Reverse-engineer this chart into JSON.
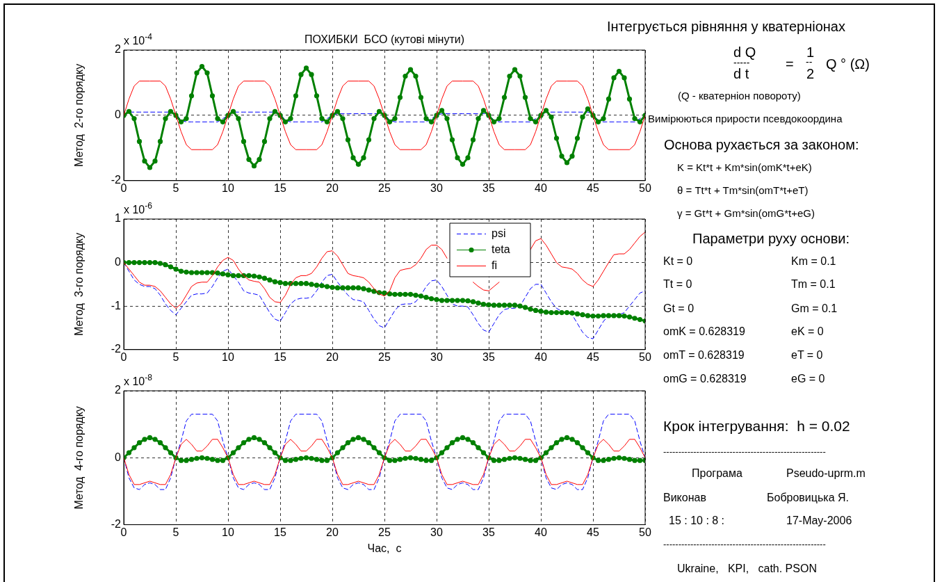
{
  "chart_data": [
    {
      "type": "line",
      "title": "ПОХИБКИ  БСО (кутові мінути)",
      "ylabel": "Метод  2-го порядку",
      "annotations": [
        "x 10$^{-4}$"
      ],
      "xlim": [
        0,
        50
      ],
      "xticks": [
        0,
        5,
        10,
        15,
        20,
        25,
        30,
        35,
        40,
        45,
        50
      ],
      "ylim": [
        -2,
        2
      ],
      "yticks": [
        -2,
        0,
        2
      ],
      "grid": true,
      "x": [
        0,
        0.5,
        1,
        1.5,
        2,
        2.5,
        3,
        3.5,
        4,
        4.5,
        5,
        5.5,
        6,
        6.5,
        7,
        7.5,
        8,
        8.5,
        9,
        9.5,
        10,
        10.5,
        11,
        11.5,
        12,
        12.5,
        13,
        13.5,
        14,
        14.5,
        15,
        15.5,
        16,
        16.5,
        17,
        17.5,
        18,
        18.5,
        19,
        19.5,
        20,
        20.5,
        21,
        21.5,
        22,
        22.5,
        23,
        23.5,
        24,
        24.5,
        25,
        25.5,
        26,
        26.5,
        27,
        27.5,
        28,
        28.5,
        29,
        29.5,
        30,
        30.5,
        31,
        31.5,
        32,
        32.5,
        33,
        33.5,
        34,
        34.5,
        35,
        35.5,
        36,
        36.5,
        37,
        37.5,
        38,
        38.5,
        39,
        39.5,
        40,
        40.5,
        41,
        41.5,
        42,
        42.5,
        43,
        43.5,
        44,
        44.5,
        45,
        45.5,
        46,
        46.5,
        47,
        47.5,
        48,
        48.5,
        49,
        49.5,
        50
      ],
      "series": [
        {
          "color": "#0000ff",
          "line_style": "dashed",
          "values": [
            0,
            0.1,
            0.1,
            0.1,
            0.1,
            0.1,
            0.1,
            0.1,
            0.1,
            0.1,
            0.05,
            -0.15,
            -0.2,
            -0.2,
            -0.2,
            -0.2,
            -0.2,
            -0.2,
            -0.2,
            -0.1,
            0,
            0.1,
            0.1,
            0.1,
            0.1,
            0.1,
            0.1,
            0.1,
            0.1,
            0.1,
            0.05,
            -0.15,
            -0.2,
            -0.2,
            -0.2,
            -0.2,
            -0.2,
            -0.2,
            -0.2,
            -0.1,
            0,
            0.05,
            0.05,
            0.05,
            0.05,
            0.05,
            0.05,
            0.05,
            0.05,
            0.05,
            0.05,
            -0.15,
            -0.2,
            -0.2,
            -0.2,
            -0.2,
            -0.2,
            -0.2,
            -0.2,
            -0.1,
            0,
            0.05,
            0.05,
            0.05,
            0.05,
            0.05,
            0.05,
            0.05,
            0.05,
            0.05,
            0.05,
            -0.15,
            -0.2,
            -0.2,
            -0.2,
            -0.2,
            -0.2,
            -0.2,
            -0.2,
            -0.1,
            0,
            0.1,
            0.1,
            0.1,
            0.1,
            0.1,
            0.1,
            0.1,
            0.1,
            0.1,
            0.05,
            -0.15,
            -0.2,
            -0.2,
            -0.2,
            -0.2,
            -0.2,
            -0.2,
            -0.2,
            -0.1,
            0
          ]
        },
        {
          "type": "line",
          "line_style": "solid",
          "color": "#008000",
          "marker": "circle",
          "values": [
            0,
            0.12,
            -0.1,
            -0.8,
            -1.4,
            -1.6,
            -1.4,
            -0.8,
            -0.1,
            0.12,
            0,
            -0.2,
            -0.1,
            0.6,
            1.3,
            1.5,
            1.3,
            0.6,
            -0.1,
            -0.2,
            0,
            0.12,
            -0.1,
            -0.8,
            -1.35,
            -1.55,
            -1.35,
            -0.8,
            -0.1,
            0.12,
            0,
            -0.2,
            -0.1,
            0.6,
            1.25,
            1.45,
            1.25,
            0.6,
            -0.1,
            -0.2,
            0,
            0.12,
            -0.1,
            -0.75,
            -1.3,
            -1.5,
            -1.3,
            -0.75,
            -0.1,
            0.12,
            0,
            -0.2,
            -0.1,
            0.55,
            1.2,
            1.4,
            1.2,
            0.55,
            -0.1,
            -0.2,
            0,
            0.15,
            -0.1,
            -0.75,
            -1.3,
            -1.5,
            -1.3,
            -0.75,
            -0.1,
            0.15,
            0,
            -0.2,
            -0.1,
            0.55,
            1.2,
            1.4,
            1.2,
            0.55,
            -0.1,
            -0.2,
            0,
            0.15,
            -0.05,
            -0.7,
            -1.25,
            -1.45,
            -1.25,
            -0.7,
            -0.05,
            0.2,
            0,
            -0.2,
            -0.1,
            0.5,
            1.15,
            1.35,
            1.15,
            0.5,
            -0.1,
            -0.2,
            0
          ]
        },
        {
          "color": "#ff0000",
          "line_style": "solid",
          "values": [
            0,
            0.5,
            0.9,
            1.05,
            1.05,
            1.05,
            1.05,
            1.05,
            0.9,
            0.5,
            0,
            -0.5,
            -0.9,
            -1.05,
            -1.05,
            -1.05,
            -1.05,
            -1.05,
            -0.9,
            -0.5,
            0,
            0.5,
            0.9,
            1.05,
            1.05,
            1.05,
            1.05,
            1.05,
            0.9,
            0.5,
            0,
            -0.5,
            -0.9,
            -1.05,
            -1.05,
            -1.05,
            -1.05,
            -1.05,
            -0.9,
            -0.5,
            0,
            0.5,
            0.9,
            1.05,
            1.05,
            1.05,
            1.05,
            1.05,
            0.9,
            0.5,
            0,
            -0.5,
            -0.9,
            -1.05,
            -1.05,
            -1.05,
            -1.05,
            -1.05,
            -0.9,
            -0.5,
            0,
            0.5,
            0.9,
            1.05,
            1.05,
            1.05,
            1.05,
            1.05,
            0.9,
            0.5,
            0,
            -0.5,
            -0.9,
            -1.05,
            -1.05,
            -1.05,
            -1.05,
            -1.05,
            -0.9,
            -0.5,
            0,
            0.5,
            0.9,
            1.05,
            1.05,
            1.05,
            1.05,
            1.05,
            0.9,
            0.5,
            0,
            -0.5,
            -0.9,
            -1.05,
            -1.05,
            -1.05,
            -1.05,
            -1.05,
            -0.9,
            -0.5,
            0
          ]
        }
      ]
    },
    {
      "type": "line",
      "ylabel": "Метод  3-го порядку",
      "annotations": [
        "x 10$^{-6}$"
      ],
      "xlim": [
        0,
        50
      ],
      "xticks": [
        0,
        5,
        10,
        15,
        20,
        25,
        30,
        35,
        40,
        45,
        50
      ],
      "ylim": [
        -2,
        1
      ],
      "yticks": [
        -2,
        -1,
        0,
        1
      ],
      "grid": true,
      "legend": "top right",
      "x": [
        0,
        0.5,
        1,
        1.5,
        2,
        2.5,
        3,
        3.5,
        4,
        4.5,
        5,
        5.5,
        6,
        6.5,
        7,
        7.5,
        8,
        8.5,
        9,
        9.5,
        10,
        10.5,
        11,
        11.5,
        12,
        12.5,
        13,
        13.5,
        14,
        14.5,
        15,
        15.5,
        16,
        16.5,
        17,
        17.5,
        18,
        18.5,
        19,
        19.5,
        20,
        20.5,
        21,
        21.5,
        22,
        22.5,
        23,
        23.5,
        24,
        24.5,
        25,
        25.5,
        26,
        26.5,
        27,
        27.5,
        28,
        28.5,
        29,
        29.5,
        30,
        30.5,
        31,
        31.5,
        32,
        32.5,
        33,
        33.5,
        34,
        34.5,
        35,
        35.5,
        36,
        36.5,
        37,
        37.5,
        38,
        38.5,
        39,
        39.5,
        40,
        40.5,
        41,
        41.5,
        42,
        42.5,
        43,
        43.5,
        44,
        44.5,
        45,
        45.5,
        46,
        46.5,
        47,
        47.5,
        48,
        48.5,
        49,
        49.5,
        50
      ],
      "series": [
        {
          "name": "psi",
          "color": "#0000ff",
          "line_style": "dashed",
          "values": [
            0,
            -0.2,
            -0.4,
            -0.5,
            -0.55,
            -0.55,
            -0.6,
            -0.75,
            -0.95,
            -1.1,
            -1.2,
            -1.05,
            -0.9,
            -0.75,
            -0.72,
            -0.72,
            -0.7,
            -0.55,
            -0.35,
            -0.2,
            -0.15,
            -0.3,
            -0.45,
            -0.65,
            -0.7,
            -0.72,
            -0.75,
            -0.95,
            -1.15,
            -1.3,
            -1.35,
            -1.15,
            -0.95,
            -0.85,
            -0.82,
            -0.82,
            -0.8,
            -0.65,
            -0.45,
            -0.3,
            -0.27,
            -0.45,
            -0.6,
            -0.75,
            -0.85,
            -0.87,
            -0.9,
            -1.1,
            -1.3,
            -1.45,
            -1.5,
            -1.3,
            -1.1,
            -0.97,
            -0.95,
            -0.95,
            -0.9,
            -0.75,
            -0.55,
            -0.42,
            -0.4,
            -0.55,
            -0.75,
            -0.95,
            -1.0,
            -1.0,
            -1.02,
            -1.2,
            -1.4,
            -1.55,
            -1.6,
            -1.4,
            -1.2,
            -1.08,
            -1.05,
            -1.05,
            -1.0,
            -0.8,
            -0.6,
            -0.5,
            -0.5,
            -0.7,
            -0.9,
            -1.05,
            -1.12,
            -1.15,
            -1.2,
            -1.4,
            -1.6,
            -1.72,
            -1.75,
            -1.55,
            -1.35,
            -1.22,
            -1.2,
            -1.2,
            -1.15,
            -1.0,
            -0.85,
            -0.7,
            -0.65
          ]
        },
        {
          "name": "teta",
          "type": "line",
          "line_style": "solid",
          "color": "#008000",
          "marker": "circle",
          "values": [
            0,
            0,
            0,
            0,
            0,
            0,
            0,
            -0.02,
            -0.05,
            -0.1,
            -0.15,
            -0.2,
            -0.22,
            -0.23,
            -0.23,
            -0.23,
            -0.23,
            -0.23,
            -0.24,
            -0.26,
            -0.28,
            -0.3,
            -0.3,
            -0.3,
            -0.3,
            -0.31,
            -0.33,
            -0.36,
            -0.4,
            -0.44,
            -0.46,
            -0.48,
            -0.48,
            -0.48,
            -0.48,
            -0.48,
            -0.5,
            -0.52,
            -0.53,
            -0.55,
            -0.57,
            -0.58,
            -0.58,
            -0.58,
            -0.58,
            -0.58,
            -0.6,
            -0.63,
            -0.66,
            -0.69,
            -0.7,
            -0.72,
            -0.73,
            -0.73,
            -0.73,
            -0.73,
            -0.75,
            -0.77,
            -0.8,
            -0.83,
            -0.85,
            -0.87,
            -0.87,
            -0.87,
            -0.87,
            -0.87,
            -0.88,
            -0.9,
            -0.93,
            -0.96,
            -0.97,
            -0.98,
            -0.98,
            -0.98,
            -0.98,
            -0.98,
            -1.0,
            -1.03,
            -1.07,
            -1.1,
            -1.12,
            -1.14,
            -1.15,
            -1.15,
            -1.15,
            -1.15,
            -1.16,
            -1.18,
            -1.2,
            -1.22,
            -1.23,
            -1.23,
            -1.22,
            -1.22,
            -1.22,
            -1.22,
            -1.23,
            -1.25,
            -1.28,
            -1.31,
            -1.34
          ]
        },
        {
          "name": "fi",
          "color": "#ff0000",
          "line_style": "solid",
          "values": [
            0,
            -0.15,
            -0.3,
            -0.45,
            -0.52,
            -0.52,
            -0.55,
            -0.65,
            -0.8,
            -0.95,
            -1.05,
            -0.95,
            -0.75,
            -0.55,
            -0.47,
            -0.45,
            -0.45,
            -0.3,
            -0.1,
            0.05,
            0.12,
            0.05,
            -0.15,
            -0.3,
            -0.4,
            -0.43,
            -0.45,
            -0.6,
            -0.8,
            -0.9,
            -0.92,
            -0.75,
            -0.5,
            -0.35,
            -0.3,
            -0.3,
            -0.25,
            -0.1,
            0.1,
            0.25,
            0.27,
            0.15,
            -0.05,
            -0.25,
            -0.3,
            -0.32,
            -0.35,
            -0.45,
            -0.6,
            -0.72,
            -0.77,
            -0.65,
            -0.35,
            -0.18,
            -0.15,
            -0.13,
            -0.05,
            0.1,
            0.3,
            0.4,
            0.4,
            0.3,
            0.1,
            null,
            null,
            null,
            null,
            -0.45,
            -0.55,
            -0.63,
            -0.65,
            -0.55,
            -0.45,
            null,
            null,
            null,
            null,
            null,
            0.3,
            0.5,
            0.55,
            0.4,
            0.2,
            0,
            -0.1,
            -0.12,
            -0.15,
            -0.25,
            -0.4,
            -0.5,
            -0.55,
            -0.4,
            -0.2,
            0,
            0.18,
            0.2,
            0.2,
            0.3,
            0.45,
            0.6,
            0.7
          ]
        }
      ]
    },
    {
      "type": "line",
      "xlabel": "Час,  c",
      "ylabel": "Метод  4-го порядку",
      "annotations": [
        "x 10$^{-8}$"
      ],
      "xlim": [
        0,
        50
      ],
      "xticks": [
        0,
        5,
        10,
        15,
        20,
        25,
        30,
        35,
        40,
        45,
        50
      ],
      "ylim": [
        -2,
        2
      ],
      "yticks": [
        -2,
        0,
        2
      ],
      "grid": true,
      "x": [
        0,
        0.5,
        1,
        1.5,
        2,
        2.5,
        3,
        3.5,
        4,
        4.5,
        5,
        5.5,
        6,
        6.5,
        7,
        7.5,
        8,
        8.5,
        9,
        9.5,
        10,
        10.5,
        11,
        11.5,
        12,
        12.5,
        13,
        13.5,
        14,
        14.5,
        15,
        15.5,
        16,
        16.5,
        17,
        17.5,
        18,
        18.5,
        19,
        19.5,
        20,
        20.5,
        21,
        21.5,
        22,
        22.5,
        23,
        23.5,
        24,
        24.5,
        25,
        25.5,
        26,
        26.5,
        27,
        27.5,
        28,
        28.5,
        29,
        29.5,
        30,
        30.5,
        31,
        31.5,
        32,
        32.5,
        33,
        33.5,
        34,
        34.5,
        35,
        35.5,
        36,
        36.5,
        37,
        37.5,
        38,
        38.5,
        39,
        39.5,
        40,
        40.5,
        41,
        41.5,
        42,
        42.5,
        43,
        43.5,
        44,
        44.5,
        45,
        45.5,
        46,
        46.5,
        47,
        47.5,
        48,
        48.5,
        49,
        49.5,
        50
      ],
      "series": [
        {
          "color": "#0000ff",
          "line_style": "dashed",
          "values": [
            0,
            -0.6,
            -0.9,
            -0.95,
            -0.8,
            -0.75,
            -0.8,
            -0.95,
            -0.95,
            -0.6,
            0,
            0.5,
            1.1,
            1.3,
            1.3,
            1.3,
            1.3,
            1.3,
            1.1,
            0.5,
            0,
            -0.6,
            -0.9,
            -0.95,
            -0.8,
            -0.75,
            -0.8,
            -0.95,
            -0.95,
            -0.6,
            0,
            0.5,
            1.1,
            1.3,
            1.3,
            1.3,
            1.3,
            1.3,
            1.1,
            0.5,
            0,
            -0.6,
            -0.9,
            -0.95,
            -0.8,
            -0.75,
            -0.8,
            -0.95,
            -0.95,
            -0.6,
            0,
            0.5,
            1.1,
            1.3,
            1.3,
            1.3,
            1.3,
            1.3,
            1.1,
            0.5,
            0,
            -0.6,
            -0.9,
            -0.95,
            -0.8,
            -0.75,
            -0.8,
            -0.95,
            -0.95,
            -0.6,
            0,
            0.5,
            1.1,
            1.3,
            1.3,
            1.3,
            1.3,
            1.3,
            1.1,
            0.5,
            0,
            -0.6,
            -0.9,
            -0.95,
            -0.8,
            -0.75,
            -0.8,
            -0.95,
            -0.95,
            -0.6,
            0,
            0.5,
            1.1,
            1.3,
            1.3,
            1.3,
            1.3,
            1.3,
            1.1,
            0.5,
            0
          ]
        },
        {
          "type": "line",
          "line_style": "solid",
          "color": "#008000",
          "marker": "circle",
          "values": [
            0,
            0.15,
            0.3,
            0.45,
            0.55,
            0.6,
            0.55,
            0.45,
            0.3,
            0.15,
            0,
            -0.08,
            -0.08,
            -0.05,
            -0.02,
            0,
            -0.02,
            -0.05,
            -0.08,
            -0.08,
            0,
            0.15,
            0.3,
            0.45,
            0.55,
            0.6,
            0.55,
            0.45,
            0.3,
            0.15,
            0,
            -0.08,
            -0.08,
            -0.05,
            -0.02,
            0,
            -0.02,
            -0.05,
            -0.08,
            -0.08,
            0,
            0.15,
            0.3,
            0.45,
            0.55,
            0.6,
            0.55,
            0.45,
            0.3,
            0.15,
            0,
            -0.08,
            -0.08,
            -0.05,
            -0.02,
            0,
            -0.02,
            -0.05,
            -0.08,
            -0.08,
            0,
            0.15,
            0.3,
            0.45,
            0.55,
            0.6,
            0.55,
            0.45,
            0.3,
            0.15,
            0,
            -0.08,
            -0.08,
            -0.05,
            -0.02,
            0,
            -0.02,
            -0.05,
            -0.08,
            -0.08,
            0,
            0.15,
            0.3,
            0.45,
            0.55,
            0.6,
            0.55,
            0.45,
            0.3,
            0.15,
            0,
            -0.08,
            -0.08,
            -0.05,
            -0.02,
            0,
            -0.02,
            -0.05,
            -0.08,
            -0.08,
            -0.08
          ]
        },
        {
          "color": "#ff0000",
          "line_style": "solid",
          "values": [
            0,
            -0.5,
            -0.8,
            -0.8,
            -0.75,
            -0.7,
            -0.75,
            -0.8,
            -0.8,
            -0.5,
            0,
            0.4,
            0.55,
            0.4,
            0.2,
            0.2,
            0.35,
            0.55,
            0.55,
            0.3,
            0,
            -0.5,
            -0.8,
            -0.8,
            -0.75,
            -0.7,
            -0.75,
            -0.8,
            -0.8,
            -0.5,
            0,
            0.4,
            0.55,
            0.4,
            0.2,
            0.2,
            0.35,
            0.55,
            0.55,
            0.3,
            0,
            -0.5,
            -0.8,
            -0.8,
            -0.75,
            -0.7,
            -0.75,
            -0.8,
            -0.8,
            -0.5,
            0,
            0.4,
            0.55,
            0.4,
            0.2,
            0.2,
            0.35,
            0.55,
            0.55,
            0.3,
            0,
            -0.5,
            -0.8,
            -0.8,
            -0.75,
            -0.7,
            -0.75,
            -0.8,
            -0.8,
            -0.5,
            0,
            0.4,
            0.55,
            0.4,
            0.2,
            0.2,
            0.35,
            0.55,
            0.55,
            0.3,
            0,
            -0.5,
            -0.8,
            -0.8,
            -0.75,
            -0.7,
            -0.75,
            -0.8,
            -0.8,
            -0.5,
            0,
            0.4,
            0.55,
            0.4,
            0.2,
            0.2,
            0.35,
            0.55,
            0.55,
            0.3,
            0
          ]
        }
      ]
    },
    {
      "type": "other",
      "annotations": [
        "Інтегрується рівняння у кватерніонах",
        "d Q",
        "-----",
        "d t",
        "=",
        "1",
        "--",
        "2",
        "Q ° (Ω)",
        "(Q - кватерніон повороту)",
        "Вимірюються прирости псевдокоордина",
        "Основа рухається за законом:",
        "K = Kt*t + Km*sin(omK*t+eK)",
        "θ = Tt*t + Tm*sin(omT*t+eT)",
        "γ = Gt*t + Gm*sin(omG*t+eG)",
        "Параметри руху основи:",
        "Kt = 0",
        "Km = 0.1",
        "Tt = 0",
        "Tm = 0.1",
        "Gt = 0",
        "Gm = 0.1",
        "omK = 0.628319",
        "eK = 0",
        "omT = 0.628319",
        "eT = 0",
        "omG = 0.628319",
        "eG = 0",
        "Крок інтегрування:  h = 0.02",
        "------------------------------------------------------",
        "Програма",
        "Pseudo-uprm.m",
        "Виконав",
        "Бобровицька Я.",
        "15 : 10 : 8 :",
        "17-May-2006",
        "------------------------------------------------------",
        "Ukraine,   KPI,   cath. PSON"
      ]
    }
  ]
}
